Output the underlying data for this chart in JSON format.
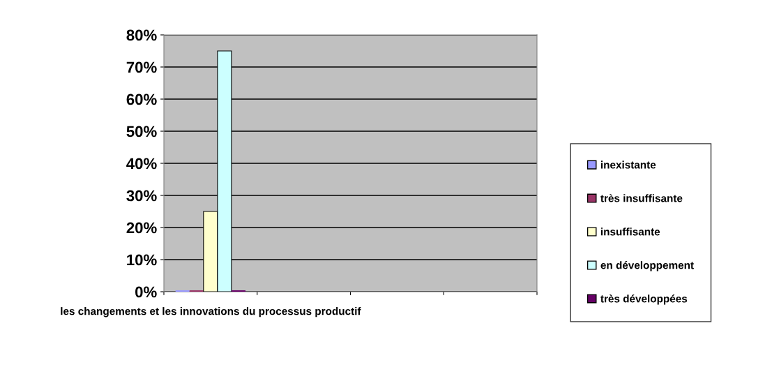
{
  "chart_data": {
    "type": "bar",
    "categories": [
      "les changements et les innovations du processus productif",
      null,
      null,
      null
    ],
    "series": [
      {
        "name": "inexistante",
        "color": "#9999ff",
        "values": [
          0,
          null,
          null,
          null
        ]
      },
      {
        "name": "très insuffisante",
        "color": "#993366",
        "values": [
          0,
          null,
          null,
          null
        ]
      },
      {
        "name": "insuffisante",
        "color": "#ffffcc",
        "values": [
          25,
          null,
          null,
          null
        ]
      },
      {
        "name": "en développement",
        "color": "#ccffff",
        "values": [
          75,
          null,
          null,
          null
        ]
      },
      {
        "name": "très développées",
        "color": "#660066",
        "values": [
          0,
          null,
          null,
          null
        ]
      }
    ],
    "ylim": [
      0,
      80
    ],
    "yticks": [
      {
        "value": 0,
        "label": "0%"
      },
      {
        "value": 10,
        "label": "10%"
      },
      {
        "value": 20,
        "label": "20%"
      },
      {
        "value": 30,
        "label": "30%"
      },
      {
        "value": 40,
        "label": "40%"
      },
      {
        "value": 50,
        "label": "50%"
      },
      {
        "value": 60,
        "label": "60%"
      },
      {
        "value": 70,
        "label": "70%"
      },
      {
        "value": 80,
        "label": "80%"
      }
    ],
    "grid": "y",
    "legend": "right"
  }
}
